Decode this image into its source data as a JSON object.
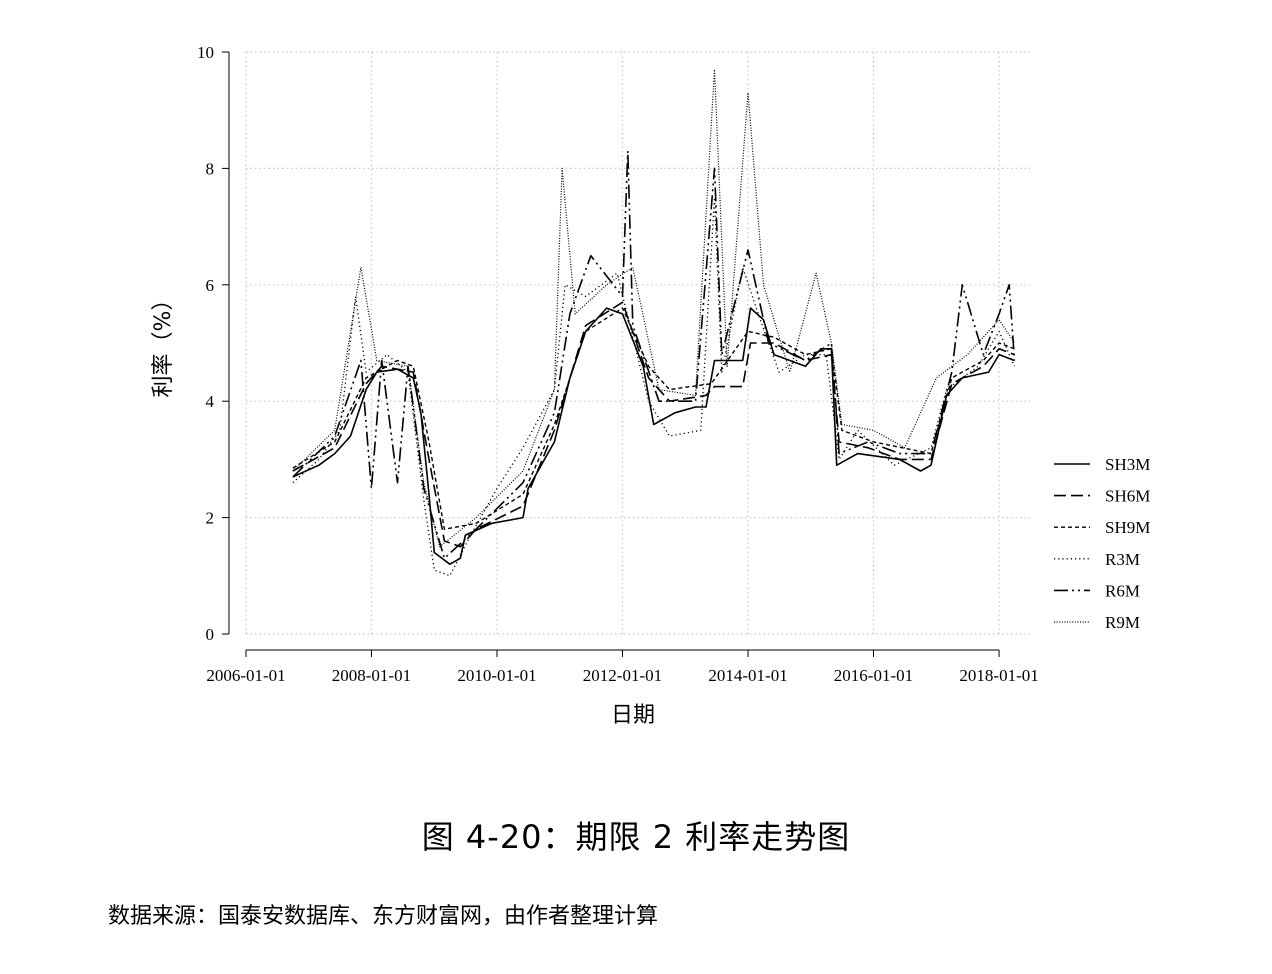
{
  "chart_data": {
    "type": "line",
    "title": "",
    "xlabel": "日期",
    "ylabel": "利率（%）",
    "ylim": [
      0,
      10
    ],
    "xlim": [
      "2006-01-01",
      "2018-06-30"
    ],
    "xticks": [
      "2006-01-01",
      "2008-01-01",
      "2010-01-01",
      "2012-01-01",
      "2014-01-01",
      "2016-01-01",
      "2018-01-01"
    ],
    "yticks": [
      0,
      2,
      4,
      6,
      8,
      10
    ],
    "grid": true,
    "legend_position": "right",
    "series": [
      {
        "name": "SH3M",
        "style": "solid",
        "points": [
          [
            "2006-10-01",
            2.7
          ],
          [
            "2007-03-01",
            2.9
          ],
          [
            "2007-06-01",
            3.1
          ],
          [
            "2007-09-01",
            3.4
          ],
          [
            "2007-12-01",
            4.2
          ],
          [
            "2008-02-01",
            4.5
          ],
          [
            "2008-06-01",
            4.55
          ],
          [
            "2008-09-01",
            4.4
          ],
          [
            "2008-10-15",
            3.8
          ],
          [
            "2008-12-01",
            2.4
          ],
          [
            "2009-01-01",
            1.4
          ],
          [
            "2009-04-01",
            1.2
          ],
          [
            "2009-06-01",
            1.3
          ],
          [
            "2009-07-01",
            1.7
          ],
          [
            "2009-12-01",
            1.9
          ],
          [
            "2010-06-01",
            2.0
          ],
          [
            "2010-07-01",
            2.5
          ],
          [
            "2010-12-01",
            3.3
          ],
          [
            "2011-03-01",
            4.4
          ],
          [
            "2011-06-01",
            5.2
          ],
          [
            "2011-10-01",
            5.6
          ],
          [
            "2012-01-01",
            5.5
          ],
          [
            "2012-05-01",
            4.6
          ],
          [
            "2012-07-01",
            3.6
          ],
          [
            "2012-11-01",
            3.8
          ],
          [
            "2013-03-01",
            3.9
          ],
          [
            "2013-05-01",
            3.9
          ],
          [
            "2013-06-20",
            4.7
          ],
          [
            "2013-12-01",
            4.7
          ],
          [
            "2014-01-15",
            5.6
          ],
          [
            "2014-04-01",
            5.4
          ],
          [
            "2014-06-01",
            4.8
          ],
          [
            "2014-12-01",
            4.6
          ],
          [
            "2015-03-01",
            4.9
          ],
          [
            "2015-05-01",
            4.9
          ],
          [
            "2015-06-01",
            2.9
          ],
          [
            "2015-10-01",
            3.1
          ],
          [
            "2016-06-01",
            3.0
          ],
          [
            "2016-10-01",
            2.8
          ],
          [
            "2016-12-01",
            2.9
          ],
          [
            "2017-03-01",
            4.1
          ],
          [
            "2017-06-01",
            4.4
          ],
          [
            "2017-11-01",
            4.5
          ],
          [
            "2018-01-01",
            4.8
          ],
          [
            "2018-04-01",
            4.7
          ]
        ]
      },
      {
        "name": "SH6M",
        "style": "dash",
        "points": [
          [
            "2006-10-01",
            2.8
          ],
          [
            "2007-06-01",
            3.2
          ],
          [
            "2007-12-01",
            4.3
          ],
          [
            "2008-03-01",
            4.6
          ],
          [
            "2008-09-01",
            4.5
          ],
          [
            "2008-12-01",
            3.0
          ],
          [
            "2009-03-01",
            1.6
          ],
          [
            "2009-06-01",
            1.5
          ],
          [
            "2009-09-01",
            1.8
          ],
          [
            "2010-06-01",
            2.2
          ],
          [
            "2010-12-01",
            3.5
          ],
          [
            "2011-06-01",
            5.3
          ],
          [
            "2012-01-01",
            5.7
          ],
          [
            "2012-06-01",
            4.4
          ],
          [
            "2012-10-01",
            4.0
          ],
          [
            "2013-05-01",
            4.1
          ],
          [
            "2013-06-20",
            4.25
          ],
          [
            "2013-12-01",
            4.25
          ],
          [
            "2014-01-15",
            5.0
          ],
          [
            "2014-06-01",
            5.0
          ],
          [
            "2014-12-01",
            4.7
          ],
          [
            "2015-05-01",
            4.8
          ],
          [
            "2015-06-15",
            3.3
          ],
          [
            "2015-12-01",
            3.2
          ],
          [
            "2016-06-01",
            3.0
          ],
          [
            "2016-12-01",
            3.0
          ],
          [
            "2017-04-01",
            4.3
          ],
          [
            "2017-10-01",
            4.6
          ],
          [
            "2018-01-01",
            4.9
          ],
          [
            "2018-04-01",
            4.8
          ]
        ]
      },
      {
        "name": "SH9M",
        "style": "short-dash",
        "points": [
          [
            "2006-10-01",
            2.85
          ],
          [
            "2007-06-01",
            3.3
          ],
          [
            "2007-12-01",
            4.4
          ],
          [
            "2008-06-01",
            4.7
          ],
          [
            "2008-09-01",
            4.6
          ],
          [
            "2008-12-01",
            3.3
          ],
          [
            "2009-03-01",
            1.8
          ],
          [
            "2009-09-01",
            1.9
          ],
          [
            "2010-06-01",
            2.4
          ],
          [
            "2010-12-01",
            3.6
          ],
          [
            "2011-06-01",
            5.2
          ],
          [
            "2012-01-01",
            5.6
          ],
          [
            "2012-06-01",
            4.6
          ],
          [
            "2012-10-01",
            4.2
          ],
          [
            "2013-06-01",
            4.3
          ],
          [
            "2014-01-01",
            5.2
          ],
          [
            "2014-06-01",
            5.1
          ],
          [
            "2014-12-01",
            4.8
          ],
          [
            "2015-05-01",
            4.9
          ],
          [
            "2015-07-01",
            3.5
          ],
          [
            "2016-01-01",
            3.3
          ],
          [
            "2016-12-01",
            3.1
          ],
          [
            "2017-04-01",
            4.4
          ],
          [
            "2017-10-01",
            4.7
          ],
          [
            "2018-01-01",
            5.0
          ],
          [
            "2018-04-01",
            4.9
          ]
        ]
      },
      {
        "name": "R3M",
        "style": "dotted",
        "points": [
          [
            "2006-10-01",
            2.6
          ],
          [
            "2007-03-01",
            3.0
          ],
          [
            "2007-07-01",
            3.5
          ],
          [
            "2007-10-01",
            5.8
          ],
          [
            "2007-12-01",
            4.5
          ],
          [
            "2008-04-01",
            4.8
          ],
          [
            "2008-08-01",
            4.5
          ],
          [
            "2008-11-01",
            2.3
          ],
          [
            "2009-01-01",
            1.1
          ],
          [
            "2009-04-01",
            1.0
          ],
          [
            "2009-08-01",
            1.7
          ],
          [
            "2010-01-01",
            2.5
          ],
          [
            "2010-06-01",
            3.2
          ],
          [
            "2010-12-01",
            4.2
          ],
          [
            "2011-02-01",
            6.0
          ],
          [
            "2011-06-01",
            5.8
          ],
          [
            "2011-12-01",
            6.2
          ],
          [
            "2012-06-01",
            4.0
          ],
          [
            "2012-10-01",
            3.4
          ],
          [
            "2013-04-01",
            3.5
          ],
          [
            "2013-06-20",
            7.5
          ],
          [
            "2013-08-01",
            4.5
          ],
          [
            "2013-12-01",
            6.3
          ],
          [
            "2014-03-01",
            5.5
          ],
          [
            "2014-07-01",
            4.5
          ],
          [
            "2014-12-01",
            4.8
          ],
          [
            "2015-04-01",
            4.8
          ],
          [
            "2015-06-15",
            3.0
          ],
          [
            "2015-10-01",
            3.5
          ],
          [
            "2016-05-01",
            2.9
          ],
          [
            "2016-12-01",
            3.2
          ],
          [
            "2017-03-01",
            4.2
          ],
          [
            "2017-09-01",
            4.6
          ],
          [
            "2018-01-01",
            5.2
          ],
          [
            "2018-04-01",
            4.6
          ]
        ]
      },
      {
        "name": "R6M",
        "style": "dash-dot",
        "points": [
          [
            "2006-10-01",
            2.7
          ],
          [
            "2007-06-01",
            3.4
          ],
          [
            "2007-11-01",
            4.7
          ],
          [
            "2008-01-01",
            2.5
          ],
          [
            "2008-03-01",
            4.7
          ],
          [
            "2008-06-01",
            2.6
          ],
          [
            "2008-08-01",
            4.6
          ],
          [
            "2008-11-01",
            2.5
          ],
          [
            "2009-03-01",
            1.3
          ],
          [
            "2009-09-01",
            1.8
          ],
          [
            "2010-06-01",
            2.6
          ],
          [
            "2010-12-01",
            3.8
          ],
          [
            "2011-03-01",
            5.5
          ],
          [
            "2011-07-01",
            6.5
          ],
          [
            "2012-01-01",
            5.8
          ],
          [
            "2012-02-01",
            8.3
          ],
          [
            "2012-03-01",
            5.3
          ],
          [
            "2012-08-01",
            4.0
          ],
          [
            "2013-03-01",
            4.0
          ],
          [
            "2013-06-20",
            8.0
          ],
          [
            "2013-08-01",
            4.8
          ],
          [
            "2014-01-01",
            6.6
          ],
          [
            "2014-05-01",
            5.0
          ],
          [
            "2014-12-01",
            4.7
          ],
          [
            "2015-05-01",
            5.0
          ],
          [
            "2015-06-15",
            3.1
          ],
          [
            "2015-12-01",
            3.3
          ],
          [
            "2016-06-01",
            3.1
          ],
          [
            "2016-12-01",
            3.1
          ],
          [
            "2017-04-01",
            4.5
          ],
          [
            "2017-06-01",
            6.0
          ],
          [
            "2017-10-01",
            4.8
          ],
          [
            "2018-01-01",
            5.5
          ],
          [
            "2018-03-01",
            6.0
          ],
          [
            "2018-04-01",
            4.7
          ]
        ]
      },
      {
        "name": "R9M",
        "style": "fine-dotted",
        "points": [
          [
            "2006-10-01",
            2.8
          ],
          [
            "2007-06-01",
            3.5
          ],
          [
            "2007-11-01",
            6.3
          ],
          [
            "2008-02-01",
            4.7
          ],
          [
            "2008-08-01",
            4.6
          ],
          [
            "2008-11-01",
            2.6
          ],
          [
            "2009-02-01",
            1.5
          ],
          [
            "2009-09-01",
            2.0
          ],
          [
            "2010-06-01",
            2.8
          ],
          [
            "2010-12-01",
            4.2
          ],
          [
            "2011-01-15",
            8.0
          ],
          [
            "2011-04-01",
            5.5
          ],
          [
            "2011-10-01",
            6.0
          ],
          [
            "2012-03-01",
            6.3
          ],
          [
            "2012-08-01",
            4.2
          ],
          [
            "2013-03-01",
            4.1
          ],
          [
            "2013-06-20",
            9.7
          ],
          [
            "2013-09-01",
            4.6
          ],
          [
            "2014-01-01",
            9.3
          ],
          [
            "2014-04-01",
            6.0
          ],
          [
            "2014-09-01",
            4.5
          ],
          [
            "2015-02-01",
            6.2
          ],
          [
            "2015-05-01",
            5.0
          ],
          [
            "2015-07-01",
            3.6
          ],
          [
            "2016-01-01",
            3.5
          ],
          [
            "2016-07-01",
            3.2
          ],
          [
            "2017-01-01",
            4.4
          ],
          [
            "2017-07-01",
            4.8
          ],
          [
            "2018-01-01",
            5.4
          ],
          [
            "2018-04-01",
            5.0
          ]
        ]
      }
    ]
  },
  "figure": {
    "caption": "图 4-20：期限 2 利率走势图",
    "source": "数据来源：国泰安数据库、东方财富网，由作者整理计算"
  }
}
